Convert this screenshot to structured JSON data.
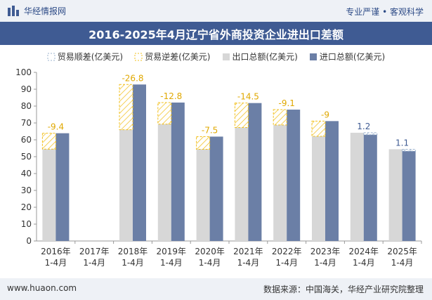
{
  "header": {
    "brand": "华经情报网",
    "slogan": "专业严谨 • 客观科学"
  },
  "colors": {
    "export": "#d7d7d7",
    "import": "#6b7fa6",
    "surplus": "#9eb4cf",
    "deficit": "#f2c01f",
    "title_bg": "#3f5b93",
    "label_surplus": "#3f5b93",
    "label_deficit": "#e0a800"
  },
  "chart_data": {
    "type": "bar",
    "title": "2016-2025年4月辽宁省外商投资企业进出口差额",
    "categories": [
      "2016年1-4月",
      "2017年1-4月",
      "2018年1-4月",
      "2019年1-4月",
      "2020年1-4月",
      "2021年1-4月",
      "2022年1-4月",
      "2023年1-4月",
      "2024年1-4月",
      "2025年1-4月"
    ],
    "series": [
      {
        "name": "出口总额(亿美元)",
        "values": [
          54.5,
          null,
          66.0,
          69.3,
          54.4,
          67.3,
          68.8,
          62.1,
          64.2,
          54.4
        ]
      },
      {
        "name": "进口总额(亿美元)",
        "values": [
          63.9,
          null,
          92.8,
          82.1,
          61.9,
          81.8,
          77.9,
          71.1,
          63.0,
          53.3
        ]
      },
      {
        "name": "贸易顺差(亿美元)",
        "values": [
          null,
          null,
          null,
          null,
          null,
          null,
          null,
          null,
          1.2,
          1.1
        ]
      },
      {
        "name": "贸易逆差(亿美元)",
        "values": [
          -9.4,
          null,
          -26.8,
          -12.8,
          -7.5,
          -14.5,
          -9.1,
          -9,
          null,
          null
        ]
      }
    ],
    "data_labels": [
      "-9.4",
      "",
      "-26.8",
      "-12.8",
      "-7.5",
      "-14.5",
      "-9.1",
      "-9",
      "1.2",
      "1.1"
    ],
    "ylim": [
      0,
      100
    ],
    "yticks": [
      "0",
      "10",
      "20",
      "30",
      "40",
      "50",
      "60",
      "70",
      "80",
      "90",
      "100"
    ],
    "grid": false
  },
  "footer": {
    "site": "www.huaon.com",
    "source": "数据来源：中国海关，华经产业研究院整理"
  }
}
